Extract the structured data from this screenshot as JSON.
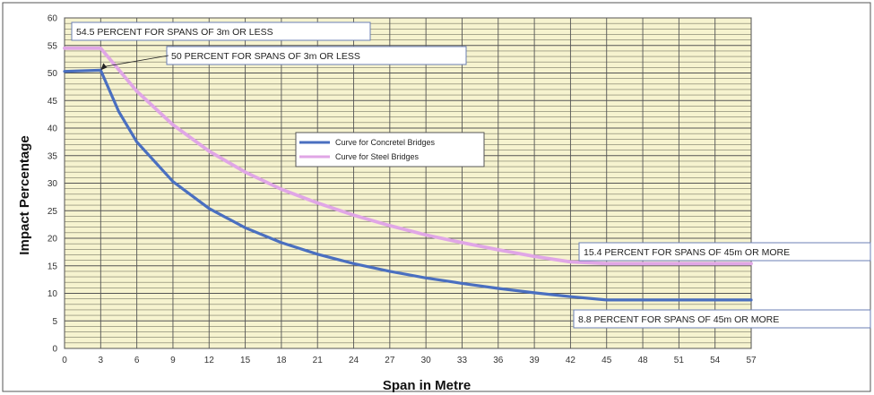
{
  "chart_data": {
    "type": "line",
    "title": "",
    "xlabel": "Span in Metre",
    "ylabel": "Impact Percentage",
    "xlim": [
      0,
      67
    ],
    "ylim": [
      0,
      60
    ],
    "x_ticks": [
      0,
      3,
      6,
      9,
      12,
      15,
      18,
      21,
      24,
      27,
      30,
      33,
      36,
      39,
      42,
      45,
      48,
      51,
      54,
      57
    ],
    "x_tick_labels": [
      "0",
      "3",
      "6",
      "9",
      "12",
      "15",
      "18",
      "21",
      "24",
      "27",
      "30",
      "33",
      "36",
      "39",
      "42",
      "45",
      "48",
      "51",
      "54",
      "57"
    ],
    "y_ticks": [
      0,
      5,
      10,
      15,
      20,
      25,
      30,
      35,
      40,
      45,
      50,
      55,
      60
    ],
    "y_tick_labels": [
      "0",
      "5",
      "10",
      "15",
      "20",
      "25",
      "30",
      "35",
      "40",
      "45",
      "50",
      "55",
      "60"
    ],
    "grid": true,
    "legend_position": "center",
    "series": [
      {
        "name": "Curve for Concretel Bridges",
        "color": "#4a6fc0",
        "x": [
          0,
          3,
          4.5,
          6,
          9,
          12,
          15,
          18,
          21,
          24,
          27,
          30,
          33,
          36,
          39,
          42,
          45,
          57
        ],
        "y": [
          50.3,
          50.5,
          43,
          37.5,
          30.3,
          25.4,
          21.9,
          19.2,
          17.1,
          15.4,
          14.0,
          12.8,
          11.8,
          10.9,
          10.1,
          9.4,
          8.8,
          8.8
        ]
      },
      {
        "name": "Curve for Steel Bridges",
        "color": "#e0a6e6",
        "x": [
          0,
          3,
          6,
          9,
          12,
          15,
          18,
          21,
          24,
          27,
          30,
          33,
          36,
          39,
          42,
          45,
          57
        ],
        "y": [
          54.5,
          54.5,
          46.7,
          40.6,
          35.8,
          32.0,
          28.9,
          26.4,
          24.2,
          22.3,
          20.6,
          19.2,
          17.9,
          16.7,
          15.7,
          15.4,
          15.4
        ]
      }
    ],
    "annotations": [
      {
        "text": "54.5 PERCENT FOR SPANS OF 3m OR LESS"
      },
      {
        "text": "50 PERCENT FOR SPANS OF 3m OR LESS"
      },
      {
        "text": "15.4 PERCENT FOR SPANS OF 45m OR MORE"
      },
      {
        "text": "8.8 PERCENT FOR SPANS OF 45m OR MORE"
      }
    ]
  }
}
